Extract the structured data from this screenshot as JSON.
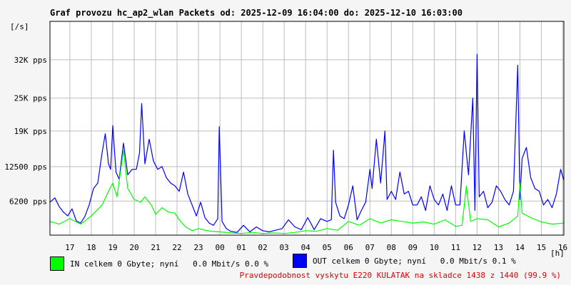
{
  "chart_data": {
    "type": "line",
    "title": "Graf provozu hc_ap2_wlan Packets od: 2025-12-09 16:04:00 do: 2025-12-10 16:03:00",
    "ylabel": "[/s]",
    "xlabel": "[h]",
    "ylim": [
      0,
      39000
    ],
    "y_ticks": [
      {
        "value": 6200,
        "label": "6200 pps"
      },
      {
        "value": 12500,
        "label": "12500 pps"
      },
      {
        "value": 19000,
        "label": "19K pps"
      },
      {
        "value": 25000,
        "label": "25K pps"
      },
      {
        "value": 32000,
        "label": "32K pps"
      }
    ],
    "x_ticks": [
      "17",
      "18",
      "19",
      "20",
      "21",
      "22",
      "23",
      "00",
      "01",
      "02",
      "03",
      "04",
      "05",
      "06",
      "07",
      "08",
      "09",
      "10",
      "11",
      "12",
      "13",
      "14",
      "15",
      "16"
    ],
    "x_range_hours": [
      16.07,
      40.05
    ],
    "grid": true,
    "series": [
      {
        "name": "OUT celkem",
        "color": "#0000ff",
        "x": [
          16.07,
          16.3,
          16.5,
          16.7,
          16.9,
          17.1,
          17.3,
          17.5,
          17.7,
          17.9,
          18.1,
          18.3,
          18.5,
          18.65,
          18.8,
          18.9,
          19.0,
          19.15,
          19.3,
          19.5,
          19.7,
          19.9,
          20.1,
          20.25,
          20.35,
          20.5,
          20.7,
          20.9,
          21.1,
          21.3,
          21.5,
          21.7,
          21.9,
          22.1,
          22.3,
          22.5,
          22.7,
          22.9,
          23.1,
          23.3,
          23.5,
          23.7,
          23.9,
          23.97,
          24.1,
          24.3,
          24.5,
          24.8,
          25.1,
          25.4,
          25.7,
          26.0,
          26.3,
          26.6,
          26.9,
          27.2,
          27.5,
          27.8,
          28.1,
          28.4,
          28.7,
          29.0,
          29.2,
          29.3,
          29.4,
          29.6,
          29.8,
          30.0,
          30.2,
          30.4,
          30.6,
          30.8,
          31.0,
          31.1,
          31.3,
          31.5,
          31.7,
          31.8,
          32.0,
          32.2,
          32.4,
          32.6,
          32.8,
          33.0,
          33.2,
          33.4,
          33.6,
          33.8,
          34.0,
          34.2,
          34.4,
          34.6,
          34.8,
          35.0,
          35.2,
          35.4,
          35.6,
          35.8,
          35.9,
          36.0,
          36.1,
          36.3,
          36.5,
          36.7,
          36.9,
          37.1,
          37.3,
          37.5,
          37.7,
          37.9,
          38.0,
          38.1,
          38.3,
          38.5,
          38.7,
          38.9,
          39.1,
          39.3,
          39.5,
          39.7,
          39.9,
          40.05
        ],
        "y": [
          6000,
          6800,
          5200,
          4200,
          3500,
          4800,
          2600,
          2200,
          3400,
          5500,
          8500,
          9500,
          15000,
          18500,
          13000,
          12000,
          20000,
          11500,
          10200,
          16800,
          11000,
          12000,
          12000,
          15000,
          24000,
          13000,
          17500,
          13500,
          12000,
          12500,
          10500,
          9500,
          9000,
          8000,
          11500,
          7500,
          5500,
          3500,
          6000,
          3200,
          2200,
          1800,
          3000,
          19800,
          2500,
          1200,
          700,
          500,
          1800,
          600,
          1500,
          800,
          600,
          900,
          1200,
          2800,
          1500,
          1000,
          3200,
          1000,
          3000,
          2500,
          2800,
          15500,
          6000,
          3500,
          3000,
          5500,
          9000,
          2800,
          4500,
          6000,
          12000,
          8500,
          17500,
          9500,
          19000,
          6500,
          8000,
          6500,
          11500,
          7500,
          8000,
          5500,
          5500,
          7000,
          4500,
          9000,
          6500,
          5500,
          7500,
          4500,
          9000,
          5500,
          5500,
          19000,
          11000,
          25000,
          4500,
          33000,
          7000,
          8000,
          5000,
          6000,
          9000,
          8000,
          6500,
          5500,
          8000,
          31000,
          6500,
          14000,
          16000,
          10500,
          8500,
          8000,
          5500,
          6500,
          5000,
          7500,
          12000,
          10000
        ]
      },
      {
        "name": "IN celkem",
        "color": "#00ff00",
        "x": [
          16.07,
          16.5,
          17.0,
          17.5,
          18.0,
          18.5,
          18.8,
          19.0,
          19.2,
          19.5,
          19.7,
          20.0,
          20.3,
          20.5,
          20.8,
          21.0,
          21.3,
          21.6,
          21.9,
          22.1,
          22.4,
          22.7,
          23.0,
          23.3,
          23.6,
          24.0,
          24.5,
          25.0,
          25.5,
          26.0,
          26.5,
          27.0,
          27.5,
          28.0,
          28.5,
          29.0,
          29.5,
          30.0,
          30.5,
          31.0,
          31.5,
          32.0,
          32.5,
          33.0,
          33.5,
          34.0,
          34.5,
          35.0,
          35.3,
          35.5,
          35.7,
          36.0,
          36.5,
          37.0,
          37.5,
          37.9,
          38.0,
          38.1,
          38.5,
          39.0,
          39.5,
          40.05
        ],
        "y": [
          2500,
          2000,
          3000,
          2000,
          3500,
          5500,
          8000,
          9500,
          7000,
          15500,
          8500,
          6500,
          6000,
          7000,
          5500,
          3800,
          5000,
          4200,
          4000,
          2800,
          1500,
          800,
          1200,
          900,
          700,
          600,
          400,
          300,
          500,
          300,
          400,
          300,
          500,
          800,
          700,
          1200,
          900,
          2500,
          1800,
          3000,
          2200,
          2800,
          2500,
          2200,
          2400,
          2000,
          2800,
          1600,
          1800,
          9000,
          2500,
          3000,
          2800,
          1500,
          2200,
          3500,
          9500,
          4000,
          3200,
          2400,
          2000,
          2200
        ]
      }
    ]
  },
  "legend": {
    "in_label": "IN celkem 0 Gbyte; nyní   0.0 Mbit/s 0.0 %",
    "in_color": "#00ff00",
    "out_label": "OUT celkem 0 Gbyte; nyní   0.0 Mbit/s 0.1 %",
    "out_color": "#0000ff"
  },
  "footer_note": "Pravdepodobnost vyskytu E220 KULATAK na skladce 1438 z 1440 (99.9 %)"
}
